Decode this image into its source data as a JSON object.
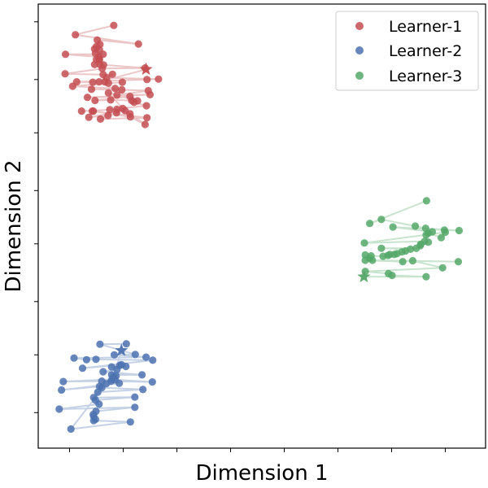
{
  "chart_data": {
    "type": "scatter",
    "title": "",
    "xlabel": "Dimension 1",
    "ylabel": "Dimension 2",
    "xlim": [
      0,
      100
    ],
    "ylim": [
      0,
      100
    ],
    "xticks": [
      7,
      19,
      31,
      43,
      55,
      67,
      79,
      91
    ],
    "yticks": [
      8,
      21,
      33,
      46,
      58,
      71,
      83,
      96
    ],
    "tick_labels_visible": false,
    "grid": false,
    "legend_position": "top-right",
    "series": [
      {
        "name": "Learner-1",
        "color": "#c44e52",
        "marker": "circle",
        "connected": true,
        "final_marker": "star",
        "points": [
          [
            16.9,
            95.2
          ],
          [
            8.3,
            93.1
          ],
          [
            22.4,
            91.0
          ],
          [
            13.2,
            91.9
          ],
          [
            13.8,
            90.9
          ],
          [
            13.0,
            90.4
          ],
          [
            12.6,
            89.9
          ],
          [
            13.7,
            89.7
          ],
          [
            12.8,
            88.9
          ],
          [
            14.5,
            88.7
          ],
          [
            6.1,
            88.7
          ],
          [
            13.6,
            88.1
          ],
          [
            13.6,
            87.6
          ],
          [
            13.7,
            87.5
          ],
          [
            13.0,
            87.5
          ],
          [
            13.8,
            86.4
          ],
          [
            12.6,
            86.4
          ],
          [
            14.6,
            86.3
          ],
          [
            23.9,
            85.6
          ],
          [
            14.3,
            85.5
          ],
          [
            6.0,
            84.3
          ],
          [
            14.5,
            84.1
          ],
          [
            16.6,
            84.2
          ],
          [
            15.3,
            83.4
          ],
          [
            26.9,
            83.1
          ],
          [
            24.3,
            83.0
          ],
          [
            8.6,
            82.5
          ],
          [
            12.2,
            82.4
          ],
          [
            14.9,
            82.5
          ],
          [
            15.7,
            82.2
          ],
          [
            18.8,
            82.4
          ],
          [
            7.7,
            81.5
          ],
          [
            17.2,
            81.0
          ],
          [
            11.9,
            80.8
          ],
          [
            18.7,
            80.7
          ],
          [
            24.6,
            80.5
          ],
          [
            17.6,
            79.5
          ],
          [
            25.0,
            79.6
          ],
          [
            11.0,
            79.0
          ],
          [
            20.5,
            79.2
          ],
          [
            12.7,
            78.3
          ],
          [
            16.2,
            78.4
          ],
          [
            20.9,
            78.3
          ],
          [
            21.4,
            77.9
          ],
          [
            24.2,
            77.1
          ],
          [
            12.3,
            75.9
          ],
          [
            9.7,
            75.9
          ],
          [
            16.0,
            76.2
          ],
          [
            18.9,
            76.5
          ],
          [
            17.5,
            75.5
          ],
          [
            13.9,
            74.1
          ],
          [
            24.3,
            74.4
          ],
          [
            12.1,
            75.9
          ],
          [
            20.6,
            74.6
          ],
          [
            23.9,
            72.9
          ],
          [
            20.5,
            75.3
          ],
          [
            17.6,
            76.3
          ],
          [
            15.6,
            74.9
          ],
          [
            11.3,
            74.5
          ],
          [
            19.4,
            76.0
          ],
          [
            15.7,
            80.0
          ],
          [
            22.2,
            78.2
          ],
          [
            13.6,
            82.5
          ],
          [
            24.1,
            85.3
          ]
        ]
      },
      {
        "name": "Learner-2",
        "color": "#4c72b0",
        "marker": "circle",
        "connected": true,
        "final_marker": "star",
        "points": [
          [
            19.7,
            23.5
          ],
          [
            13.8,
            23.4
          ],
          [
            21.7,
            21.1
          ],
          [
            17.0,
            21.0
          ],
          [
            24.1,
            20.5
          ],
          [
            8.0,
            20.3
          ],
          [
            10.8,
            19.9
          ],
          [
            12.9,
            20.0
          ],
          [
            25.6,
            19.8
          ],
          [
            9.9,
            18.0
          ],
          [
            18.6,
            18.8
          ],
          [
            18.2,
            18.6
          ],
          [
            19.6,
            18.4
          ],
          [
            16.4,
            18.3
          ],
          [
            17.6,
            17.7
          ],
          [
            14.5,
            17.2
          ],
          [
            23.2,
            16.5
          ],
          [
            16.4,
            16.5
          ],
          [
            17.4,
            16.3
          ],
          [
            16.5,
            15.5
          ],
          [
            5.6,
            15.0
          ],
          [
            16.3,
            15.1
          ],
          [
            14.2,
            15.1
          ],
          [
            25.5,
            14.9
          ],
          [
            17.2,
            15.4
          ],
          [
            18.1,
            14.6
          ],
          [
            5.2,
            13.1
          ],
          [
            13.7,
            13.9
          ],
          [
            14.2,
            13.6
          ],
          [
            23.4,
            13.2
          ],
          [
            13.3,
            12.6
          ],
          [
            12.4,
            11.4
          ],
          [
            21.6,
            11.5
          ],
          [
            12.8,
            10.8
          ],
          [
            13.6,
            9.9
          ],
          [
            4.7,
            8.8
          ],
          [
            21.6,
            9.2
          ],
          [
            12.9,
            8.3
          ],
          [
            12.3,
            7.6
          ],
          [
            12.4,
            7.2
          ],
          [
            12.8,
            6.5
          ],
          [
            12.4,
            6.2
          ],
          [
            20.6,
            5.9
          ],
          [
            7.3,
            4.3
          ],
          [
            15.2,
            14.5
          ],
          [
            16.9,
            16.1
          ],
          [
            18.6,
            22.0
          ]
        ]
      },
      {
        "name": "Learner-3",
        "color": "#55a868",
        "marker": "circle",
        "connected": true,
        "final_marker": "star",
        "points": [
          [
            86.8,
            55.7
          ],
          [
            74.1,
            50.6
          ],
          [
            76.7,
            51.5
          ],
          [
            84.3,
            50.0
          ],
          [
            86.6,
            49.5
          ],
          [
            94.1,
            49.0
          ],
          [
            90.8,
            49.1
          ],
          [
            79.3,
            49.8
          ],
          [
            88.1,
            48.7
          ],
          [
            86.7,
            48.0
          ],
          [
            87.2,
            48.4
          ],
          [
            90.1,
            47.4
          ],
          [
            91.0,
            48.6
          ],
          [
            72.9,
            46.2
          ],
          [
            86.4,
            46.6
          ],
          [
            87.2,
            46.4
          ],
          [
            85.5,
            45.9
          ],
          [
            85.4,
            45.6
          ],
          [
            84.5,
            45.0
          ],
          [
            76.7,
            45.0
          ],
          [
            83.2,
            44.8
          ],
          [
            82.1,
            44.4
          ],
          [
            81.3,
            44.2
          ],
          [
            80.2,
            43.8
          ],
          [
            79.6,
            43.6
          ],
          [
            78.6,
            43.6
          ],
          [
            78.2,
            43.4
          ],
          [
            77.1,
            43.2
          ],
          [
            74.4,
            43.3
          ],
          [
            74.1,
            42.7
          ],
          [
            73.1,
            43.5
          ],
          [
            74.7,
            42.3
          ],
          [
            93.9,
            42.0
          ],
          [
            73.1,
            42.3
          ],
          [
            81.5,
            42.0
          ],
          [
            83.7,
            42.2
          ],
          [
            90.4,
            40.6
          ],
          [
            73.1,
            39.8
          ],
          [
            78.3,
            39.3
          ],
          [
            79.1,
            38.9
          ],
          [
            86.7,
            38.6
          ],
          [
            72.8,
            38.6
          ]
        ]
      }
    ]
  }
}
